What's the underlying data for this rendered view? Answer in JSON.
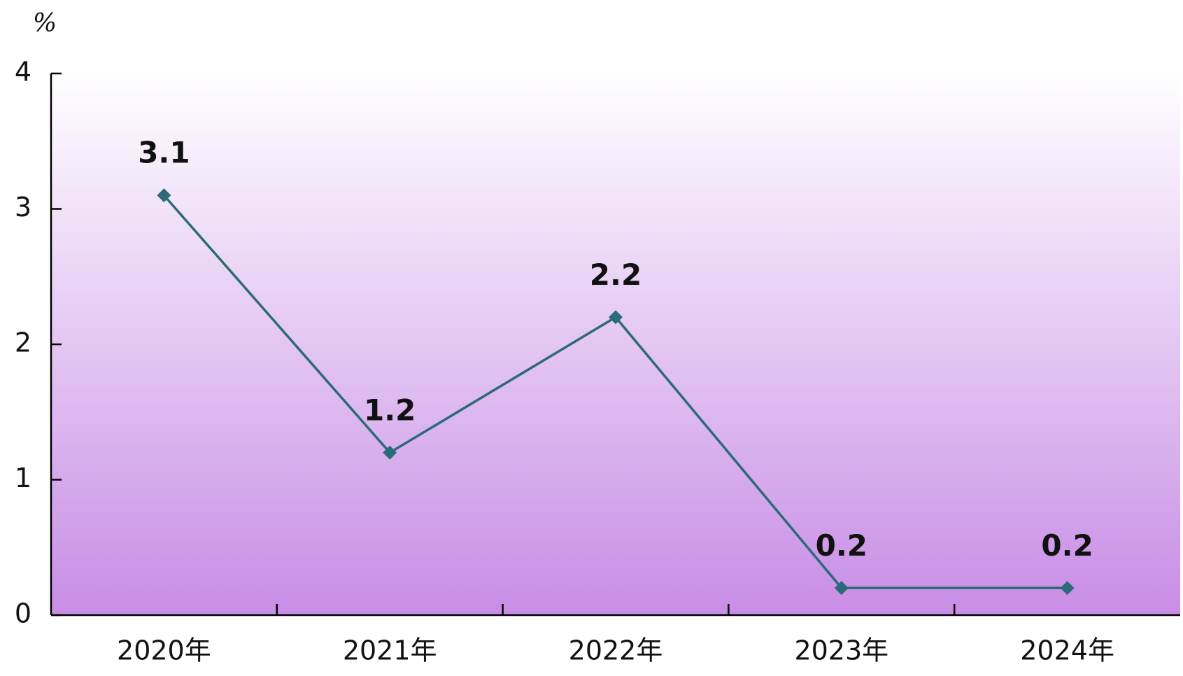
{
  "chart_data": {
    "type": "line",
    "y_label": "%",
    "categories": [
      "2020年",
      "2021年",
      "2022年",
      "2023年",
      "2024年"
    ],
    "values": [
      3.1,
      1.2,
      2.2,
      0.2,
      0.2
    ],
    "color": "#2b6a78",
    "ylim": [
      0,
      4
    ],
    "yticks": [
      0,
      1,
      2,
      3,
      4
    ]
  }
}
